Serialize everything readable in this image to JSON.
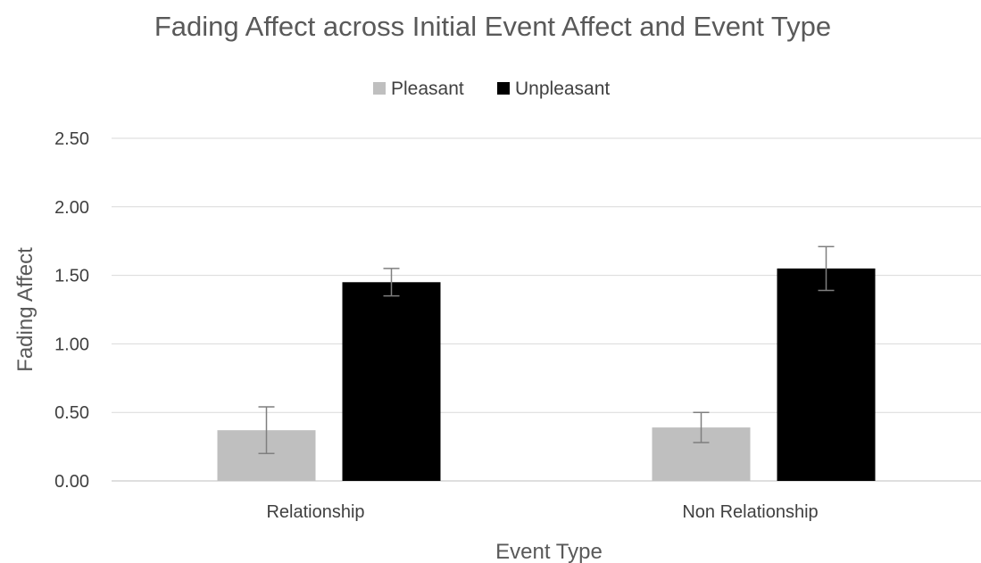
{
  "chart_data": {
    "type": "bar",
    "title": "Fading Affect across Initial Event Affect and Event Type",
    "xlabel": "Event Type",
    "ylabel": "Fading Affect",
    "categories": [
      "Relationship",
      "Non Relationship"
    ],
    "ylim": [
      0,
      2.5
    ],
    "yticks": [
      "0.00",
      "0.50",
      "1.00",
      "1.50",
      "2.00",
      "2.50"
    ],
    "grid": true,
    "legend_position": "top",
    "series": [
      {
        "name": "Pleasant",
        "color": "#bfbfbf",
        "values": [
          0.37,
          0.39
        ],
        "error": [
          0.17,
          0.11
        ]
      },
      {
        "name": "Unpleasant",
        "color": "#000000",
        "values": [
          1.45,
          1.55
        ],
        "error": [
          0.1,
          0.16
        ]
      }
    ]
  }
}
